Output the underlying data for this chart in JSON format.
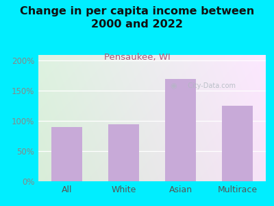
{
  "title": "Change in per capita income between\n2000 and 2022",
  "subtitle": "Pensaukee, WI",
  "categories": [
    "All",
    "White",
    "Asian",
    "Multirace"
  ],
  "values": [
    90,
    95,
    170,
    125
  ],
  "bar_color": "#c8aad8",
  "title_fontsize": 11.5,
  "subtitle_fontsize": 9.5,
  "subtitle_color": "#b05878",
  "title_color": "#111111",
  "bg_outer": "#00eeff",
  "yticks": [
    0,
    50,
    100,
    150,
    200
  ],
  "ylim": [
    0,
    210
  ],
  "tick_color": "#888888",
  "tick_fontsize": 8.5,
  "xlabel_fontsize": 9,
  "watermark": "City-Data.com",
  "bg_colors_lr": [
    "#d8ecd0",
    "#e8eef4"
  ],
  "bg_colors_tb": [
    "#e0f0d8",
    "#f0f4f8"
  ]
}
